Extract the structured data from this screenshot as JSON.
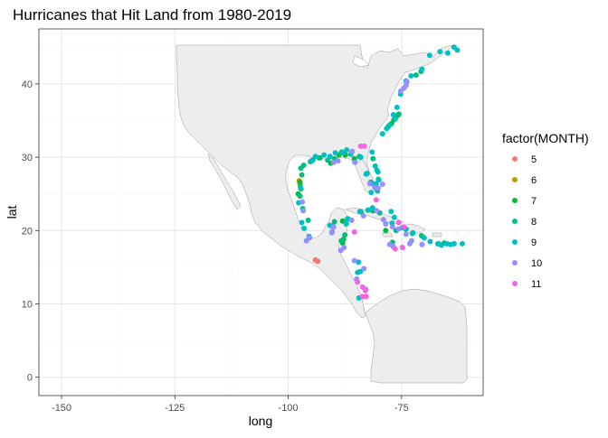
{
  "title": "Hurricanes that Hit Land from 1980-2019",
  "chart_data": {
    "type": "scatter",
    "title": "Hurricanes that Hit Land from 1980-2019",
    "xlabel": "long",
    "ylabel": "lat",
    "xlim": [
      -155,
      -57
    ],
    "ylim": [
      -2.5,
      47.5
    ],
    "x_ticks": [
      -150,
      -125,
      -100,
      -75
    ],
    "y_ticks": [
      0,
      10,
      20,
      30,
      40
    ],
    "grid": true,
    "legend_position": "right",
    "legend": {
      "title": "factor(MONTH)",
      "entries": [
        {
          "label": "5",
          "color": "#F8766D"
        },
        {
          "label": "6",
          "color": "#B79F00"
        },
        {
          "label": "7",
          "color": "#00BA38"
        },
        {
          "label": "8",
          "color": "#00BF7D"
        },
        {
          "label": "9",
          "color": "#00BFC4"
        },
        {
          "label": "10",
          "color": "#9590FF"
        },
        {
          "label": "11",
          "color": "#F564E3"
        }
      ]
    },
    "series": [
      {
        "month": "5",
        "points": [
          [
            -94.0,
            16.0
          ],
          [
            -93.5,
            15.8
          ]
        ]
      },
      {
        "month": "6",
        "points": [
          [
            -97.6,
            26.8
          ],
          [
            -97.4,
            26.3
          ]
        ]
      },
      {
        "month": "7",
        "points": [
          [
            -97.8,
            25.0
          ],
          [
            -97.4,
            26.6
          ],
          [
            -94.6,
            29.6
          ],
          [
            -93.0,
            29.9
          ],
          [
            -90.6,
            29.2
          ],
          [
            -88.8,
            30.3
          ],
          [
            -87.4,
            30.3
          ],
          [
            -85.4,
            29.8
          ],
          [
            -88.0,
            21.3
          ],
          [
            -87.8,
            18.8
          ],
          [
            -88.0,
            18.3
          ],
          [
            -77.2,
            34.6
          ],
          [
            -76.7,
            35.1
          ],
          [
            -75.8,
            35.7
          ],
          [
            -80.2,
            25.8
          ],
          [
            -81.3,
            22.7
          ],
          [
            -78.5,
            20.0
          ],
          [
            -90.2,
            20.6
          ]
        ]
      },
      {
        "month": "8",
        "points": [
          [
            -97.2,
            28.5
          ],
          [
            -97.0,
            27.6
          ],
          [
            -96.6,
            28.9
          ],
          [
            -95.1,
            29.4
          ],
          [
            -93.2,
            29.9
          ],
          [
            -91.3,
            29.6
          ],
          [
            -89.8,
            29.8
          ],
          [
            -88.2,
            30.7
          ],
          [
            -84.3,
            30.1
          ],
          [
            -82.6,
            27.8
          ],
          [
            -81.8,
            26.6
          ],
          [
            -80.5,
            25.6
          ],
          [
            -80.1,
            27.0
          ],
          [
            -80.4,
            28.2
          ],
          [
            -81.3,
            29.8
          ],
          [
            -77.9,
            34.2
          ],
          [
            -76.4,
            35.3
          ],
          [
            -75.6,
            35.9
          ],
          [
            -71.8,
            41.2
          ],
          [
            -70.7,
            41.7
          ],
          [
            -96.8,
            23.0
          ],
          [
            -97.4,
            24.7
          ],
          [
            -97.2,
            25.7
          ],
          [
            -89.8,
            21.2
          ],
          [
            -87.2,
            21.0
          ],
          [
            -87.5,
            19.4
          ],
          [
            -88.3,
            18.6
          ],
          [
            -86.8,
            21.6
          ],
          [
            -83.9,
            22.5
          ],
          [
            -82.4,
            22.8
          ],
          [
            -79.8,
            22.4
          ],
          [
            -74.8,
            20.4
          ],
          [
            -72.6,
            19.6
          ],
          [
            -70.6,
            19.3
          ],
          [
            -77.0,
            18.4
          ],
          [
            -76.2,
            20.0
          ],
          [
            -66.8,
            18.2
          ],
          [
            -65.6,
            18.3
          ],
          [
            -95.6,
            21.4
          ]
        ]
      },
      {
        "month": "9",
        "points": [
          [
            -94.0,
            30.1
          ],
          [
            -94.8,
            29.5
          ],
          [
            -92.1,
            30.3
          ],
          [
            -90.8,
            30.1
          ],
          [
            -89.6,
            30.6
          ],
          [
            -87.9,
            30.6
          ],
          [
            -87.1,
            31.0
          ],
          [
            -86.2,
            30.4
          ],
          [
            -84.0,
            30.0
          ],
          [
            -82.8,
            27.7
          ],
          [
            -81.4,
            26.4
          ],
          [
            -81.7,
            25.2
          ],
          [
            -80.3,
            25.4
          ],
          [
            -80.6,
            26.4
          ],
          [
            -80.0,
            26.9
          ],
          [
            -80.2,
            28.0
          ],
          [
            -80.8,
            28.8
          ],
          [
            -81.5,
            30.7
          ],
          [
            -79.2,
            33.2
          ],
          [
            -78.3,
            33.9
          ],
          [
            -77.6,
            34.4
          ],
          [
            -76.4,
            35.2
          ],
          [
            -76.8,
            35.8
          ],
          [
            -76.0,
            36.8
          ],
          [
            -75.2,
            38.6
          ],
          [
            -74.0,
            40.4
          ],
          [
            -72.9,
            41.1
          ],
          [
            -70.5,
            42.0
          ],
          [
            -68.8,
            43.9
          ],
          [
            -66.5,
            44.4
          ],
          [
            -64.8,
            44.2
          ],
          [
            -62.7,
            44.6
          ],
          [
            -63.4,
            45.0
          ],
          [
            -97.3,
            25.9
          ],
          [
            -97.7,
            23.8
          ],
          [
            -97.0,
            21.1
          ],
          [
            -96.5,
            20.3
          ],
          [
            -95.4,
            19.2
          ],
          [
            -90.8,
            20.7
          ],
          [
            -87.2,
            20.9
          ],
          [
            -86.9,
            21.6
          ],
          [
            -84.2,
            22.6
          ],
          [
            -82.2,
            22.8
          ],
          [
            -81.4,
            23.1
          ],
          [
            -77.3,
            22.6
          ],
          [
            -76.6,
            21.8
          ],
          [
            -77.1,
            21.0
          ],
          [
            -74.0,
            20.2
          ],
          [
            -72.5,
            19.7
          ],
          [
            -70.0,
            19.0
          ],
          [
            -68.7,
            18.5
          ],
          [
            -67.0,
            18.2
          ],
          [
            -66.2,
            18.0
          ],
          [
            -65.0,
            18.2
          ],
          [
            -64.2,
            18.1
          ],
          [
            -63.4,
            18.2
          ],
          [
            -61.6,
            18.2
          ],
          [
            -84.1,
            14.4
          ],
          [
            -84.7,
            14.3
          ],
          [
            -84.5,
            15.7
          ],
          [
            -84.4,
            10.8
          ]
        ]
      },
      {
        "month": "10",
        "points": [
          [
            -96.7,
            22.7
          ],
          [
            -96.9,
            23.9
          ],
          [
            -96.0,
            18.6
          ],
          [
            -95.3,
            19.0
          ],
          [
            -90.3,
            19.9
          ],
          [
            -90.0,
            20.5
          ],
          [
            -90.4,
            19.7
          ],
          [
            -88.4,
            17.3
          ],
          [
            -87.7,
            17.7
          ],
          [
            -85.4,
            15.9
          ],
          [
            -83.3,
            14.8
          ],
          [
            -84.9,
            13.4
          ],
          [
            -82.9,
            12.0
          ],
          [
            -80.5,
            22.7
          ],
          [
            -79.0,
            21.5
          ],
          [
            -78.5,
            20.9
          ],
          [
            -77.0,
            20.5
          ],
          [
            -75.7,
            20.2
          ],
          [
            -74.0,
            19.5
          ],
          [
            -72.8,
            18.6
          ],
          [
            -73.2,
            18.2
          ],
          [
            -76.8,
            17.8
          ],
          [
            -77.6,
            18.1
          ],
          [
            -70.5,
            18.1
          ],
          [
            -90.0,
            29.3
          ],
          [
            -89.0,
            29.5
          ],
          [
            -85.9,
            30.8
          ],
          [
            -85.3,
            29.3
          ],
          [
            -82.0,
            26.4
          ],
          [
            -80.9,
            25.9
          ],
          [
            -80.2,
            25.8
          ],
          [
            -79.2,
            26.3
          ],
          [
            -75.2,
            39.0
          ],
          [
            -74.5,
            39.4
          ],
          [
            -74.0,
            39.8
          ],
          [
            -73.8,
            40.3
          ],
          [
            -83.4,
            22.0
          ],
          [
            -86.0,
            21.4
          ]
        ]
      },
      {
        "month": "11",
        "points": [
          [
            -84.0,
            31.5
          ],
          [
            -83.2,
            31.5
          ],
          [
            -85.4,
            19.8
          ],
          [
            -80.6,
            24.2
          ],
          [
            -75.6,
            21.1
          ],
          [
            -74.5,
            20.5
          ],
          [
            -74.8,
            17.7
          ],
          [
            -76.4,
            17.5
          ],
          [
            -83.6,
            12.3
          ],
          [
            -83.0,
            11.8
          ],
          [
            -83.6,
            11.0
          ],
          [
            -82.8,
            11.0
          ],
          [
            -84.7,
            13.0
          ]
        ]
      }
    ]
  }
}
